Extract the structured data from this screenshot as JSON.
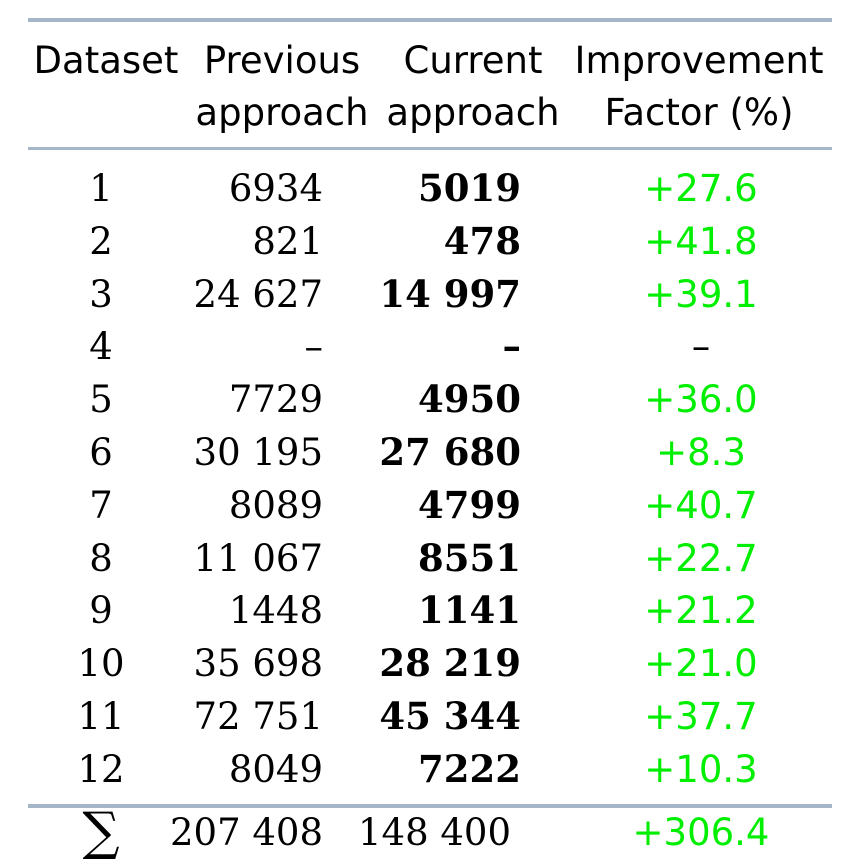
{
  "table": {
    "headers": {
      "dataset": "Dataset",
      "previous": [
        "Previous",
        "approach"
      ],
      "current": [
        "Current",
        "approach"
      ],
      "improvement": [
        "Improvement",
        "Factor (%)"
      ]
    },
    "rows": [
      {
        "dataset": "1",
        "previous": "6934",
        "current": "5019",
        "improvement": "+27.6"
      },
      {
        "dataset": "2",
        "previous": "821",
        "current": "478",
        "improvement": "+41.8"
      },
      {
        "dataset": "3",
        "previous": "24 627",
        "current": "14 997",
        "improvement": "+39.1"
      },
      {
        "dataset": "4",
        "previous": "–",
        "current": "–",
        "improvement": "–"
      },
      {
        "dataset": "5",
        "previous": "7729",
        "current": "4950",
        "improvement": "+36.0"
      },
      {
        "dataset": "6",
        "previous": "30 195",
        "current": "27 680",
        "improvement": "+8.3"
      },
      {
        "dataset": "7",
        "previous": "8089",
        "current": "4799",
        "improvement": "+40.7"
      },
      {
        "dataset": "8",
        "previous": "11 067",
        "current": "8551",
        "improvement": "+22.7"
      },
      {
        "dataset": "9",
        "previous": "1448",
        "current": "1141",
        "improvement": "+21.2"
      },
      {
        "dataset": "10",
        "previous": "35 698",
        "current": "28 219",
        "improvement": "+21.0"
      },
      {
        "dataset": "11",
        "previous": "72 751",
        "current": "45 344",
        "improvement": "+37.7"
      },
      {
        "dataset": "12",
        "previous": "8049",
        "current": "7222",
        "improvement": "+10.3"
      }
    ],
    "total": {
      "symbol": "∑",
      "previous": "207 408",
      "current": "148 400",
      "improvement": "+306.4"
    }
  },
  "colors": {
    "rule": "#a4b6c8",
    "improvement_positive": "#00ee00",
    "improvement_neutral": "#000000"
  }
}
